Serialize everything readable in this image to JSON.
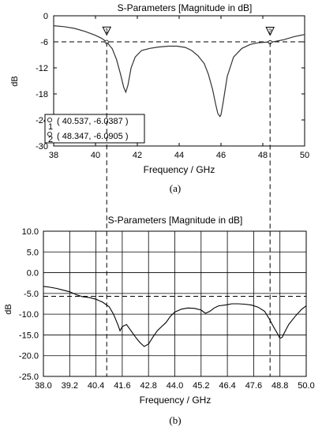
{
  "chart_data": [
    {
      "type": "line",
      "title": "S-Parameters [Magnitude in dB]",
      "xlabel": "Frequency / GHz",
      "ylabel": "dB",
      "caption": "(a)",
      "xlim": [
        38,
        50
      ],
      "ylim": [
        -30,
        0
      ],
      "x_ticks": [
        "38",
        "40",
        "42",
        "44",
        "46",
        "48",
        "50"
      ],
      "y_ticks": [
        "0",
        "-6",
        "-12",
        "-18",
        "-24",
        "-30"
      ],
      "grid": false,
      "series": [
        {
          "color": "#333333",
          "x": [
            38.0,
            38.5,
            39.0,
            39.5,
            40.0,
            40.3,
            40.537,
            40.8,
            41.0,
            41.2,
            41.35,
            41.45,
            41.55,
            41.7,
            41.9,
            42.2,
            42.6,
            43.0,
            43.5,
            43.9,
            44.3,
            44.6,
            44.9,
            45.2,
            45.4,
            45.6,
            45.75,
            45.85,
            45.95,
            46.0,
            46.1,
            46.3,
            46.6,
            47.0,
            47.4,
            47.8,
            48.1,
            48.347,
            48.6,
            49.0,
            49.5,
            50.0
          ],
          "y": [
            -2.3,
            -2.5,
            -2.9,
            -3.6,
            -4.5,
            -5.2,
            -6.04,
            -7.6,
            -10.0,
            -13.5,
            -16.5,
            -17.6,
            -16.0,
            -12.0,
            -9.5,
            -8.0,
            -7.5,
            -7.2,
            -7.0,
            -7.0,
            -7.3,
            -8.0,
            -9.2,
            -11.0,
            -13.5,
            -17.0,
            -20.5,
            -22.5,
            -23.2,
            -22.8,
            -20.0,
            -14.0,
            -9.5,
            -7.5,
            -6.6,
            -6.2,
            -6.1,
            -6.09,
            -5.9,
            -5.5,
            -4.8,
            -4.3
          ]
        }
      ],
      "reference_line": {
        "y": -6,
        "style": "dashed"
      },
      "markers": [
        {
          "id": "1",
          "x": 40.537,
          "y": -6.0387,
          "label": "( 40.537, -6.0387 )"
        },
        {
          "id": "2",
          "x": 48.347,
          "y": -6.0905,
          "label": "( 48.347, -6.0905 )"
        }
      ]
    },
    {
      "type": "line",
      "title": "S-Parameters [Magnitude in dB]",
      "xlabel": "Frequency / GHz",
      "ylabel": "dB",
      "caption": "(b)",
      "xlim": [
        38.0,
        50.0
      ],
      "ylim": [
        -25.0,
        10.0
      ],
      "x_ticks": [
        "38.0",
        "39.2",
        "40.4",
        "41.6",
        "42.8",
        "44.0",
        "45.2",
        "46.4",
        "47.6",
        "48.8",
        "50.0"
      ],
      "y_ticks": [
        "10.0",
        "5.0",
        "0.0",
        "-5.0",
        "-10.0",
        "-15.0",
        "-20.0",
        "-25.0"
      ],
      "grid": true,
      "series": [
        {
          "color": "#000000",
          "x": [
            38.0,
            38.3,
            38.6,
            38.9,
            39.2,
            39.5,
            39.8,
            40.1,
            40.4,
            40.7,
            41.0,
            41.2,
            41.4,
            41.5,
            41.6,
            41.8,
            42.0,
            42.2,
            42.4,
            42.6,
            42.8,
            43.0,
            43.2,
            43.4,
            43.6,
            43.8,
            44.0,
            44.3,
            44.6,
            44.9,
            45.2,
            45.4,
            45.6,
            45.8,
            46.0,
            46.3,
            46.6,
            46.9,
            47.2,
            47.5,
            47.8,
            48.1,
            48.3,
            48.5,
            48.7,
            48.8,
            48.9,
            49.0,
            49.2,
            49.5,
            49.8,
            50.0
          ],
          "y": [
            -3.3,
            -3.5,
            -3.8,
            -4.2,
            -4.6,
            -5.3,
            -5.8,
            -6.0,
            -6.4,
            -7.1,
            -8.2,
            -10.0,
            -12.5,
            -14.0,
            -13.0,
            -12.5,
            -14.0,
            -15.5,
            -16.8,
            -17.8,
            -17.2,
            -15.5,
            -14.0,
            -13.0,
            -12.0,
            -10.5,
            -9.5,
            -8.8,
            -8.5,
            -8.6,
            -9.0,
            -9.8,
            -9.3,
            -8.5,
            -8.0,
            -7.8,
            -7.5,
            -7.5,
            -7.6,
            -7.8,
            -8.3,
            -9.3,
            -11.0,
            -13.0,
            -14.8,
            -15.8,
            -15.6,
            -14.5,
            -12.5,
            -10.5,
            -8.8,
            -8.0
          ]
        }
      ],
      "reference_line": {
        "y": -5.7,
        "style": "dashed"
      }
    }
  ]
}
